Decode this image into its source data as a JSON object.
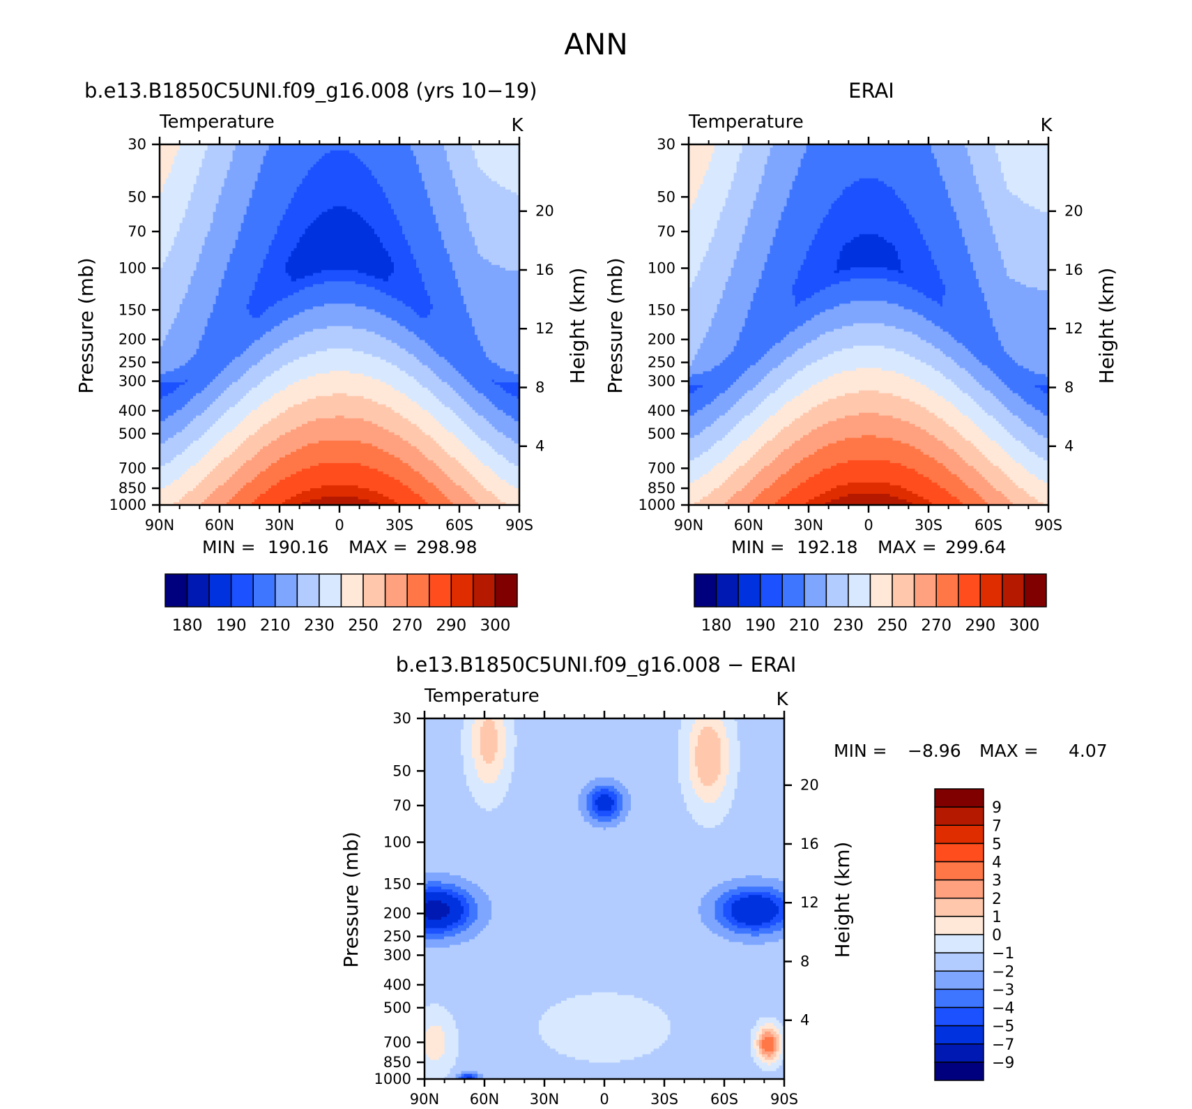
{
  "page": {
    "title": "ANN"
  },
  "palettes": {
    "temperature": [
      "#00007e",
      "#0019b2",
      "#0032e0",
      "#1b51ff",
      "#3f76ff",
      "#7ea6ff",
      "#b2ccff",
      "#d8e9ff",
      "#ffe8d8",
      "#ffc8ad",
      "#ffa17f",
      "#ff7747",
      "#ff4d1d",
      "#e02d00",
      "#b51a00",
      "#800000"
    ],
    "difference": [
      "#00007e",
      "#0019b2",
      "#0032e0",
      "#1b51ff",
      "#3f76ff",
      "#7ea6ff",
      "#b2ccff",
      "#d8e9ff",
      "#ffe8d8",
      "#ffc8ad",
      "#ffa17f",
      "#ff7747",
      "#ff4d1d",
      "#e02d00",
      "#b51a00",
      "#800000"
    ]
  },
  "chart_data": [
    {
      "id": "model",
      "type": "heatmap",
      "title": "b.e13.B1850C5UNI.f09_g16.008 (yrs 10-19)",
      "field_label": "Temperature",
      "units": "K",
      "ylabel": "Pressure (mb)",
      "y2label": "Height (km)",
      "x_ticks": [
        "90N",
        "60N",
        "30N",
        "0",
        "30S",
        "60S",
        "90S"
      ],
      "x_values": [
        90,
        60,
        30,
        0,
        -30,
        -60,
        -90
      ],
      "y_ticks": [
        30,
        50,
        70,
        100,
        150,
        200,
        250,
        300,
        400,
        500,
        700,
        850,
        1000
      ],
      "y2_ticks": [
        20,
        16,
        12,
        8,
        4
      ],
      "ylim": [
        30,
        1000
      ],
      "y_scale": "log",
      "stats": {
        "min_label": "MIN =",
        "min": "190.16",
        "max_label": "MAX =",
        "max": "298.98"
      },
      "colorbar": {
        "orientation": "horizontal",
        "labels": [
          "180",
          "190",
          "210",
          "230",
          "250",
          "270",
          "290",
          "300"
        ],
        "palette": "temperature"
      },
      "params": {
        "tropo_min": 190,
        "eq_base": 299,
        "pole_base": 247,
        "shift": 0
      }
    },
    {
      "id": "obs",
      "type": "heatmap",
      "title": "ERAI",
      "field_label": "Temperature",
      "units": "K",
      "ylabel": "Pressure (mb)",
      "y2label": "Height (km)",
      "x_ticks": [
        "90N",
        "60N",
        "30N",
        "0",
        "30S",
        "60S",
        "90S"
      ],
      "x_values": [
        90,
        60,
        30,
        0,
        -30,
        -60,
        -90
      ],
      "y_ticks": [
        30,
        50,
        70,
        100,
        150,
        200,
        250,
        300,
        400,
        500,
        700,
        850,
        1000
      ],
      "y2_ticks": [
        20,
        16,
        12,
        8,
        4
      ],
      "ylim": [
        30,
        1000
      ],
      "y_scale": "log",
      "stats": {
        "min_label": "MIN =",
        "min": "192.18",
        "max_label": "MAX =",
        "max": "299.64"
      },
      "colorbar": {
        "orientation": "horizontal",
        "labels": [
          "180",
          "190",
          "210",
          "230",
          "250",
          "270",
          "290",
          "300"
        ],
        "palette": "temperature"
      },
      "params": {
        "tropo_min": 192,
        "eq_base": 300,
        "pole_base": 249,
        "shift": 1
      }
    },
    {
      "id": "diff",
      "type": "heatmap",
      "title": "b.e13.B1850C5UNI.f09_g16.008 - ERAI",
      "field_label": "Temperature",
      "units": "K",
      "ylabel": "Pressure (mb)",
      "y2label": "Height (km)",
      "x_ticks": [
        "90N",
        "60N",
        "30N",
        "0",
        "30S",
        "60S",
        "90S"
      ],
      "x_values": [
        90,
        60,
        30,
        0,
        -30,
        -60,
        -90
      ],
      "y_ticks": [
        30,
        50,
        70,
        100,
        150,
        200,
        250,
        300,
        400,
        500,
        700,
        850,
        1000
      ],
      "y2_ticks": [
        20,
        16,
        12,
        8,
        4
      ],
      "ylim": [
        30,
        1000
      ],
      "y_scale": "log",
      "stats": {
        "min_label": "MIN =",
        "min": "-8.96",
        "max_label": "MAX =",
        "max": "4.07"
      },
      "colorbar": {
        "orientation": "vertical",
        "labels": [
          "9",
          "7",
          "5",
          "4",
          "3",
          "2",
          "1",
          "0",
          "-1",
          "-2",
          "-3",
          "-4",
          "-5",
          "-7",
          "-9"
        ],
        "palette": "difference"
      }
    }
  ]
}
